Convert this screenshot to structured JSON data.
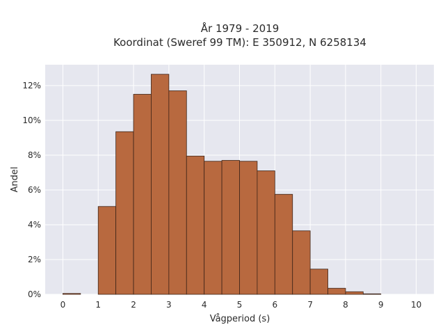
{
  "chart_data": {
    "type": "bar",
    "title_line1": "År 1979 - 2019",
    "title_line2": "Koordinat (Sweref 99 TM): E 350912, N 6258134",
    "xlabel": "Vågperiod (s)",
    "ylabel": "Andel",
    "bin_width": 0.5,
    "bins_start": [
      0,
      0.5,
      1,
      1.5,
      2,
      2.5,
      3,
      3.5,
      4,
      4.5,
      5,
      5.5,
      6,
      6.5,
      7,
      7.5,
      8,
      8.5,
      9,
      9.5
    ],
    "values": [
      0.05,
      0,
      5.05,
      9.35,
      11.5,
      12.65,
      11.7,
      7.95,
      7.65,
      7.7,
      7.65,
      7.1,
      5.75,
      3.65,
      1.45,
      0.35,
      0.15,
      0.03,
      0,
      0
    ],
    "xlim": [
      -0.5,
      10.5
    ],
    "ylim": [
      0,
      13.2
    ],
    "xticks": [
      0,
      1,
      2,
      3,
      4,
      5,
      6,
      7,
      8,
      9,
      10
    ],
    "xtick_labels": [
      "0",
      "1",
      "2",
      "3",
      "4",
      "5",
      "6",
      "7",
      "8",
      "9",
      "10"
    ],
    "yticks": [
      0,
      2,
      4,
      6,
      8,
      10,
      12
    ],
    "ytick_labels": [
      "0%",
      "2%",
      "4%",
      "6%",
      "8%",
      "10%",
      "12%"
    ],
    "grid": true,
    "colors": {
      "bar_fill": "#b8693f",
      "bar_stroke": "#3d2418",
      "plot_bg": "#e6e7ef",
      "grid": "#ffffff"
    }
  }
}
